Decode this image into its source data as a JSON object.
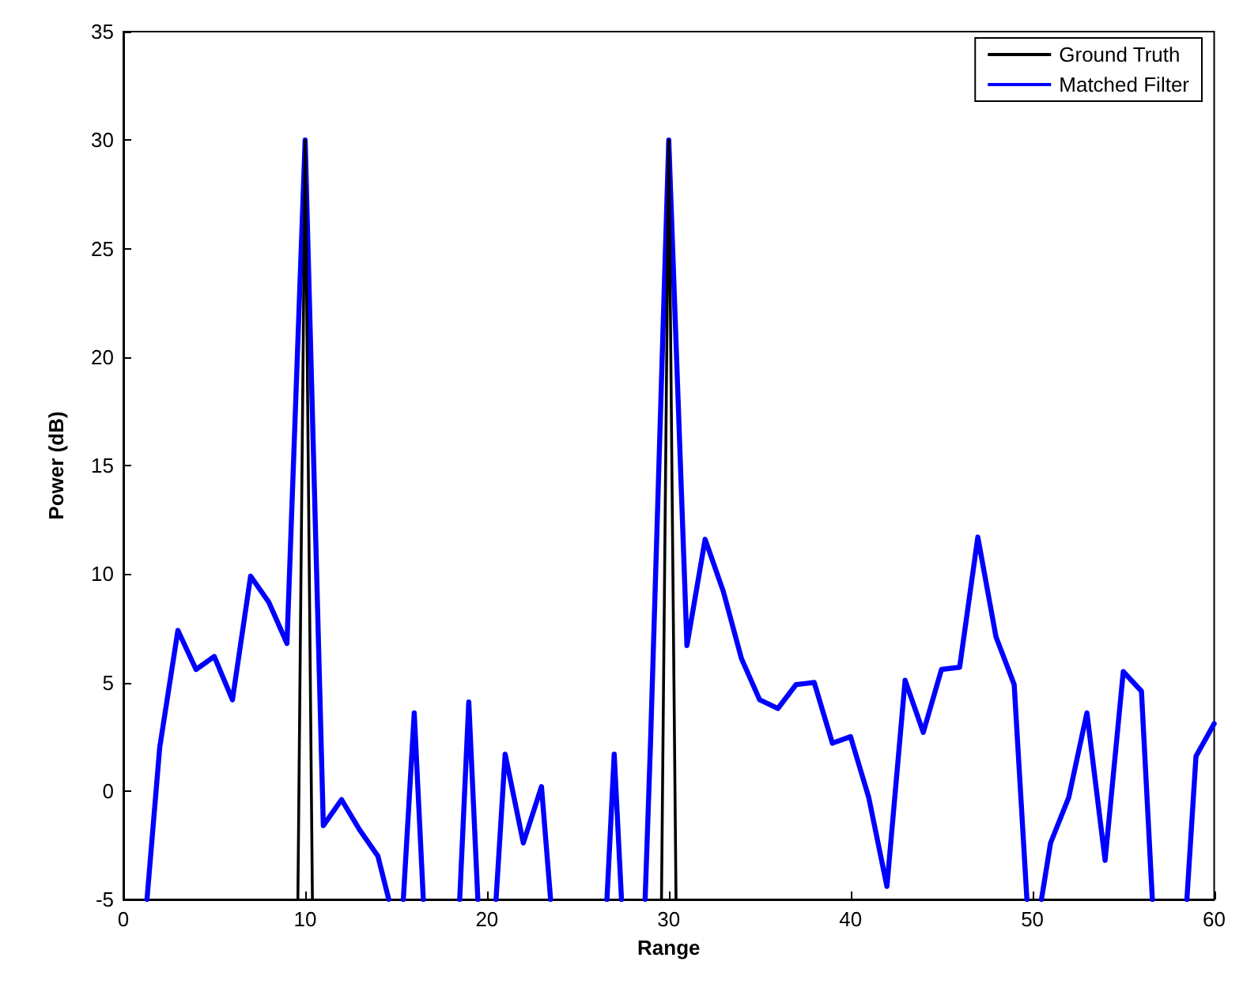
{
  "chart_data": {
    "type": "line",
    "xlabel": "Range",
    "ylabel": "Power (dB)",
    "xlim": [
      0,
      60
    ],
    "xticks": [
      0,
      10,
      20,
      30,
      40,
      50,
      60
    ],
    "ylim": [
      -5,
      35
    ],
    "yticks": [
      -5,
      0,
      5,
      10,
      15,
      20,
      25,
      30,
      35
    ],
    "grid": false,
    "legend": "top right",
    "marker": "none",
    "line_style": "solid",
    "series": [
      {
        "name": "Ground Truth",
        "color": "#000000",
        "x": [
          9.6,
          10,
          10.4,
          20,
          29.6,
          30,
          30.4
        ],
        "values": [
          -5,
          30,
          -5,
          null,
          -5,
          30,
          -5
        ]
      },
      {
        "name": "Matched Filter",
        "color": "#0000ff",
        "x": [
          1.3,
          2,
          3,
          4,
          5,
          6,
          7,
          8,
          9,
          10,
          11,
          12,
          13,
          14,
          14.6,
          15,
          15.4,
          16,
          16.5,
          17,
          18.5,
          19,
          19.5,
          20,
          20.5,
          21,
          22,
          23,
          23.5,
          25,
          26.6,
          27,
          27.4,
          28,
          28.7,
          29,
          30,
          31,
          32,
          33,
          34,
          35,
          36,
          37,
          38,
          39,
          40,
          41,
          42,
          43,
          44,
          45,
          46,
          47,
          48,
          49,
          49.7,
          50,
          50.5,
          51,
          52,
          53,
          54,
          55,
          56,
          56.6,
          58,
          58.5,
          59,
          60
        ],
        "values": [
          -5,
          2.0,
          7.4,
          5.6,
          6.2,
          4.2,
          9.9,
          8.7,
          6.8,
          30,
          -1.6,
          -0.4,
          -1.8,
          -3.0,
          -5,
          null,
          -5,
          3.6,
          -5,
          null,
          -5,
          4.1,
          -5,
          null,
          -5,
          1.7,
          -2.4,
          0.2,
          -5,
          null,
          -5,
          1.7,
          -5,
          null,
          -5,
          2.3,
          30,
          6.7,
          11.6,
          9.2,
          6.1,
          4.2,
          3.8,
          4.9,
          5.0,
          2.2,
          2.5,
          -0.3,
          -4.4,
          5.1,
          2.7,
          5.6,
          5.7,
          11.7,
          7.1,
          4.9,
          -5,
          null,
          -5,
          -2.4,
          -0.3,
          3.6,
          -3.2,
          5.5,
          4.6,
          -5,
          null,
          -5,
          1.6,
          3.1
        ]
      }
    ]
  }
}
